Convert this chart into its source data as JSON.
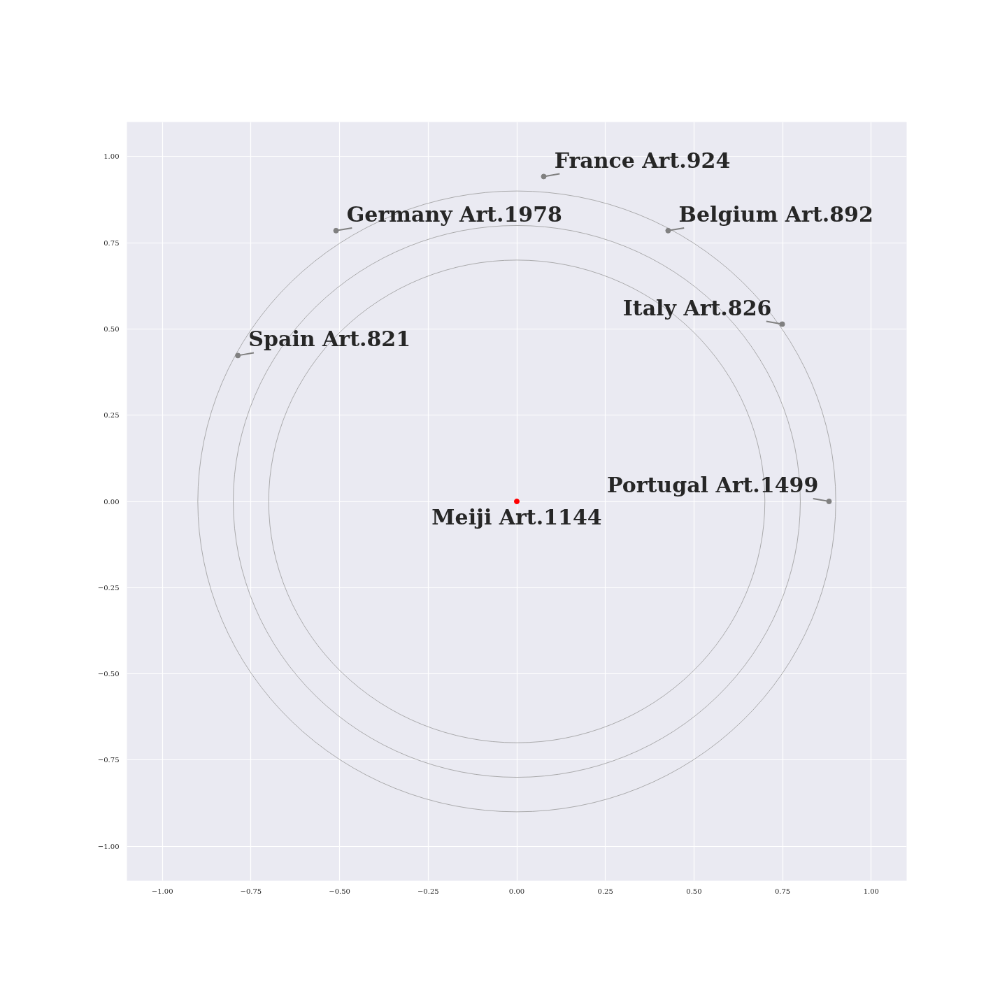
{
  "chart_data": {
    "type": "scatter",
    "xlim": [
      -1.1,
      1.1
    ],
    "ylim": [
      -1.1,
      1.1
    ],
    "xticks": [
      {
        "value": -1,
        "label": "−1.00"
      },
      {
        "value": -0.75,
        "label": "−0.75"
      },
      {
        "value": -0.5,
        "label": "−0.50"
      },
      {
        "value": -0.25,
        "label": "−0.25"
      },
      {
        "value": 0,
        "label": "0.00"
      },
      {
        "value": 0.25,
        "label": "0.25"
      },
      {
        "value": 0.5,
        "label": "0.50"
      },
      {
        "value": 0.75,
        "label": "0.75"
      },
      {
        "value": 1,
        "label": "1.00"
      }
    ],
    "yticks": [
      {
        "value": -1,
        "label": "−1.00"
      },
      {
        "value": -0.75,
        "label": "−0.75"
      },
      {
        "value": -0.5,
        "label": "−0.50"
      },
      {
        "value": -0.25,
        "label": "−0.25"
      },
      {
        "value": 0,
        "label": "0.00"
      },
      {
        "value": 0.25,
        "label": "0.25"
      },
      {
        "value": 0.5,
        "label": "0.50"
      },
      {
        "value": 0.75,
        "label": "0.75"
      },
      {
        "value": 1,
        "label": "1.00"
      }
    ],
    "grid": true,
    "marker": "circle",
    "series": [
      {
        "type": "scatter",
        "color": "#808080",
        "x": [
          0.076,
          -0.51,
          0.427,
          0.749,
          -0.787,
          0.881
        ],
        "values": [
          0.942,
          0.785,
          0.785,
          0.514,
          0.423,
          0.0
        ],
        "value_labels": [
          "France Art.924",
          "Germany Art.1978",
          "Belgium Art.892",
          "Italy Art.826",
          "Spain Art.821",
          "Portugal Art.1499"
        ]
      },
      {
        "type": "scatter",
        "color": "#ff0000",
        "x": [
          0.0
        ],
        "values": [
          0.0
        ],
        "value_labels": [
          "Meiji Art.1144"
        ]
      }
    ]
  }
}
